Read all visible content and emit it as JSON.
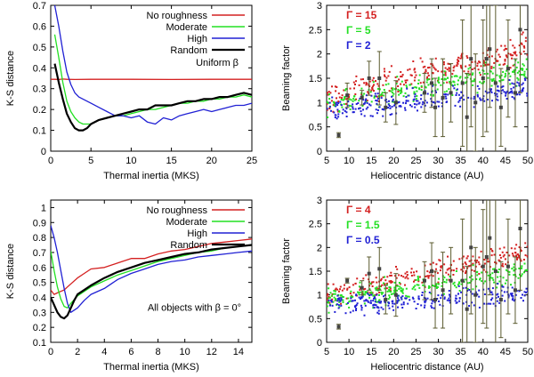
{
  "colors": {
    "red": "#d42020",
    "green": "#22e022",
    "blue": "#2020d4",
    "black": "#000000",
    "olive": "#5a5a2e",
    "gray": "#444444"
  },
  "chart_data": [
    {
      "id": "tl",
      "type": "line",
      "xlabel": "Thermal inertia (MKS)",
      "ylabel": "K-S distance",
      "xlim": [
        0,
        25
      ],
      "ylim": [
        0,
        0.7
      ],
      "xticks": [
        "0",
        "5",
        "10",
        "15",
        "20",
        "25"
      ],
      "yticks": [
        "0",
        "0.1",
        "0.2",
        "0.3",
        "0.4",
        "0.5",
        "0.6",
        "0.7"
      ],
      "legend_position": "top-right",
      "annotation": "Uniform β",
      "series": [
        {
          "name": "No roughness",
          "color": "#d42020",
          "x": [
            0,
            0.5,
            1,
            1.5,
            2,
            3,
            5,
            10,
            15,
            20,
            25
          ],
          "y": [
            0.345,
            0.345,
            0.344,
            0.346,
            0.345,
            0.344,
            0.345,
            0.345,
            0.344,
            0.345,
            0.345
          ]
        },
        {
          "name": "Moderate",
          "color": "#22e022",
          "x": [
            0.5,
            1,
            1.5,
            2,
            2.5,
            3,
            3.5,
            4,
            5,
            6,
            7,
            8,
            9,
            10,
            11,
            12,
            13,
            14,
            15,
            16,
            17,
            18,
            19,
            20,
            21,
            22,
            23,
            24,
            25
          ],
          "y": [
            0.56,
            0.45,
            0.33,
            0.24,
            0.19,
            0.16,
            0.14,
            0.13,
            0.13,
            0.15,
            0.16,
            0.17,
            0.17,
            0.18,
            0.19,
            0.2,
            0.2,
            0.21,
            0.22,
            0.23,
            0.23,
            0.24,
            0.24,
            0.25,
            0.25,
            0.26,
            0.26,
            0.27,
            0.26
          ]
        },
        {
          "name": "High",
          "color": "#2020d4",
          "x": [
            0.5,
            1,
            1.5,
            2,
            2.5,
            3,
            3.5,
            4,
            5,
            6,
            7,
            8,
            9,
            10,
            11,
            12,
            13,
            14,
            15,
            16,
            17,
            18,
            19,
            20,
            21,
            22,
            23,
            24,
            25
          ],
          "y": [
            0.7,
            0.6,
            0.48,
            0.38,
            0.32,
            0.28,
            0.26,
            0.25,
            0.23,
            0.21,
            0.19,
            0.17,
            0.17,
            0.16,
            0.17,
            0.14,
            0.13,
            0.16,
            0.15,
            0.17,
            0.18,
            0.19,
            0.2,
            0.19,
            0.2,
            0.21,
            0.22,
            0.22,
            0.23
          ]
        },
        {
          "name": "Random",
          "color": "#000000",
          "x": [
            0.5,
            1,
            1.5,
            2,
            2.5,
            3,
            3.5,
            4,
            4.5,
            5,
            6,
            7,
            8,
            9,
            10,
            11,
            12,
            13,
            14,
            15,
            16,
            17,
            18,
            19,
            20,
            21,
            22,
            23,
            24,
            25
          ],
          "y": [
            0.42,
            0.33,
            0.25,
            0.18,
            0.14,
            0.11,
            0.1,
            0.1,
            0.11,
            0.13,
            0.15,
            0.16,
            0.17,
            0.18,
            0.19,
            0.2,
            0.2,
            0.22,
            0.22,
            0.22,
            0.23,
            0.24,
            0.24,
            0.25,
            0.25,
            0.26,
            0.26,
            0.27,
            0.28,
            0.27
          ]
        }
      ]
    },
    {
      "id": "bl",
      "type": "line",
      "xlabel": "Thermal inertia (MKS)",
      "ylabel": "K-S distance",
      "xlim": [
        0,
        15
      ],
      "ylim": [
        0.1,
        1.05
      ],
      "xticks": [
        "0",
        "2",
        "4",
        "6",
        "8",
        "10",
        "12",
        "14"
      ],
      "yticks": [
        "0.1",
        "0.2",
        "0.3",
        "0.4",
        "0.5",
        "0.6",
        "0.7",
        "0.8",
        "0.9",
        "1"
      ],
      "legend_position": "top-right",
      "annotation": "All objects with β = 0°",
      "series": [
        {
          "name": "No roughness",
          "color": "#d42020",
          "x": [
            0,
            0.25,
            0.5,
            0.75,
            1,
            1.25,
            1.5,
            2,
            2.5,
            3,
            4,
            5,
            6,
            7,
            8,
            9,
            10,
            11,
            12,
            13,
            14,
            15
          ],
          "y": [
            0.45,
            0.42,
            0.43,
            0.44,
            0.45,
            0.47,
            0.49,
            0.53,
            0.56,
            0.59,
            0.6,
            0.63,
            0.66,
            0.66,
            0.69,
            0.71,
            0.72,
            0.74,
            0.76,
            0.77,
            0.78,
            0.79
          ]
        },
        {
          "name": "Moderate",
          "color": "#22e022",
          "x": [
            0,
            0.25,
            0.5,
            0.75,
            1,
            1.25,
            1.5,
            2,
            2.5,
            3,
            4,
            5,
            6,
            7,
            8,
            9,
            10,
            11,
            12,
            13,
            14,
            15
          ],
          "y": [
            0.71,
            0.58,
            0.47,
            0.39,
            0.34,
            0.33,
            0.36,
            0.41,
            0.44,
            0.47,
            0.51,
            0.55,
            0.58,
            0.61,
            0.64,
            0.66,
            0.68,
            0.7,
            0.71,
            0.73,
            0.74,
            0.75
          ]
        },
        {
          "name": "High",
          "color": "#2020d4",
          "x": [
            0,
            0.25,
            0.5,
            0.75,
            1,
            1.25,
            1.5,
            2,
            2.5,
            3,
            4,
            5,
            6,
            7,
            8,
            9,
            10,
            11,
            12,
            13,
            14,
            15
          ],
          "y": [
            0.88,
            0.8,
            0.7,
            0.58,
            0.46,
            0.36,
            0.3,
            0.33,
            0.38,
            0.42,
            0.46,
            0.52,
            0.56,
            0.59,
            0.62,
            0.64,
            0.65,
            0.67,
            0.68,
            0.69,
            0.7,
            0.71
          ]
        },
        {
          "name": "Random",
          "color": "#000000",
          "x": [
            0,
            0.25,
            0.5,
            0.75,
            1,
            1.25,
            1.5,
            1.75,
            2,
            2.5,
            3,
            4,
            5,
            6,
            7,
            8,
            9,
            10,
            11,
            12,
            13,
            14,
            15
          ],
          "y": [
            0.4,
            0.35,
            0.3,
            0.27,
            0.26,
            0.28,
            0.33,
            0.38,
            0.42,
            0.45,
            0.48,
            0.53,
            0.57,
            0.6,
            0.63,
            0.65,
            0.67,
            0.69,
            0.7,
            0.72,
            0.73,
            0.74,
            0.75
          ]
        }
      ]
    },
    {
      "id": "tr",
      "type": "scatter",
      "xlabel": "Heliocentric distance (AU)",
      "ylabel": "Beaming factor",
      "xlim": [
        5,
        50
      ],
      "ylim": [
        0,
        3
      ],
      "xticks": [
        "5",
        "10",
        "15",
        "20",
        "25",
        "30",
        "35",
        "40",
        "45",
        "50"
      ],
      "yticks": [
        "0",
        "0.5",
        "1",
        "1.5",
        "2",
        "2.5",
        "3"
      ],
      "legend_position": "top-left",
      "series": [
        {
          "name": "Γ = 15",
          "color": "#d42020",
          "trend": {
            "start": 1.08,
            "slope": 0.0235,
            "spread": 0.26
          }
        },
        {
          "name": "Γ = 5",
          "color": "#22e022",
          "trend": {
            "start": 0.95,
            "slope": 0.0165,
            "spread": 0.22
          }
        },
        {
          "name": "Γ = 2",
          "color": "#2020d4",
          "trend": {
            "start": 0.82,
            "slope": 0.0105,
            "spread": 0.2
          }
        }
      ],
      "observed": [
        {
          "x": 7.7,
          "y": 0.33,
          "err": 0.05
        },
        {
          "x": 9.6,
          "y": 1.15,
          "err": 0.25
        },
        {
          "x": 12.9,
          "y": 1.1,
          "err": 0.15
        },
        {
          "x": 14.5,
          "y": 1.5,
          "err": 0.35
        },
        {
          "x": 16.8,
          "y": 1.5,
          "err": 0.55
        },
        {
          "x": 18.2,
          "y": 0.9,
          "err": 0.3
        },
        {
          "x": 20.5,
          "y": 1.0,
          "err": 0.45
        },
        {
          "x": 26.9,
          "y": 1.2,
          "err": 0.4
        },
        {
          "x": 28.5,
          "y": 1.4,
          "err": 0.5
        },
        {
          "x": 29.3,
          "y": 0.9,
          "err": 0.6
        },
        {
          "x": 31.0,
          "y": 1.1,
          "err": 0.8
        },
        {
          "x": 32.8,
          "y": 1.2,
          "err": 0.6
        },
        {
          "x": 35.4,
          "y": 1.4,
          "err": 1.3
        },
        {
          "x": 36.4,
          "y": 0.7,
          "err": 0.9
        },
        {
          "x": 37.3,
          "y": 1.9,
          "err": 1.4
        },
        {
          "x": 38.3,
          "y": 1.0,
          "err": 1.0
        },
        {
          "x": 40.0,
          "y": 1.5,
          "err": 1.2
        },
        {
          "x": 40.8,
          "y": 1.9,
          "err": 1.5
        },
        {
          "x": 41.5,
          "y": 2.1,
          "err": 1.2
        },
        {
          "x": 42.8,
          "y": 1.4,
          "err": 1.6
        },
        {
          "x": 44.0,
          "y": 0.9,
          "err": 0.8
        },
        {
          "x": 45.6,
          "y": 1.7,
          "err": 1.0
        },
        {
          "x": 47.2,
          "y": 1.2,
          "err": 0.7
        },
        {
          "x": 48.3,
          "y": 2.5,
          "err": 1.3
        }
      ]
    },
    {
      "id": "br",
      "type": "scatter",
      "xlabel": "Heliocentric distance (AU)",
      "ylabel": "Beaming factor",
      "xlim": [
        5,
        50
      ],
      "ylim": [
        0,
        3
      ],
      "xticks": [
        "5",
        "10",
        "15",
        "20",
        "25",
        "30",
        "35",
        "40",
        "45",
        "50"
      ],
      "yticks": [
        "0",
        "0.5",
        "1",
        "1.5",
        "2",
        "2.5",
        "3"
      ],
      "legend_position": "top-left",
      "series": [
        {
          "name": "Γ = 4",
          "color": "#d42020",
          "trend": {
            "start": 1.0,
            "slope": 0.0205,
            "spread": 0.22
          }
        },
        {
          "name": "Γ = 1.5",
          "color": "#22e022",
          "trend": {
            "start": 0.88,
            "slope": 0.0135,
            "spread": 0.2
          }
        },
        {
          "name": "Γ = 0.5",
          "color": "#2020d4",
          "trend": {
            "start": 0.78,
            "slope": 0.0055,
            "spread": 0.18
          }
        }
      ],
      "observed": [
        {
          "x": 7.7,
          "y": 0.33,
          "err": 0.05
        },
        {
          "x": 9.6,
          "y": 1.3,
          "err": 0.05
        },
        {
          "x": 12.9,
          "y": 1.15,
          "err": 0.15
        },
        {
          "x": 14.5,
          "y": 1.45,
          "err": 0.35
        },
        {
          "x": 16.8,
          "y": 1.55,
          "err": 0.45
        },
        {
          "x": 18.2,
          "y": 0.9,
          "err": 0.3
        },
        {
          "x": 20.5,
          "y": 1.0,
          "err": 0.45
        },
        {
          "x": 26.9,
          "y": 1.3,
          "err": 0.4
        },
        {
          "x": 28.5,
          "y": 1.5,
          "err": 0.6
        },
        {
          "x": 29.3,
          "y": 0.9,
          "err": 0.6
        },
        {
          "x": 31.0,
          "y": 1.1,
          "err": 0.8
        },
        {
          "x": 32.8,
          "y": 1.3,
          "err": 0.7
        },
        {
          "x": 35.4,
          "y": 1.3,
          "err": 1.3
        },
        {
          "x": 36.4,
          "y": 0.7,
          "err": 0.9
        },
        {
          "x": 37.3,
          "y": 2.0,
          "err": 1.4
        },
        {
          "x": 38.3,
          "y": 1.0,
          "err": 1.0
        },
        {
          "x": 40.0,
          "y": 1.6,
          "err": 1.2
        },
        {
          "x": 40.8,
          "y": 1.8,
          "err": 1.5
        },
        {
          "x": 41.5,
          "y": 2.2,
          "err": 1.2
        },
        {
          "x": 42.8,
          "y": 1.5,
          "err": 1.6
        },
        {
          "x": 44.0,
          "y": 0.9,
          "err": 0.8
        },
        {
          "x": 45.6,
          "y": 1.6,
          "err": 1.0
        },
        {
          "x": 47.2,
          "y": 1.1,
          "err": 0.7
        },
        {
          "x": 48.3,
          "y": 2.4,
          "err": 1.3
        }
      ]
    }
  ]
}
